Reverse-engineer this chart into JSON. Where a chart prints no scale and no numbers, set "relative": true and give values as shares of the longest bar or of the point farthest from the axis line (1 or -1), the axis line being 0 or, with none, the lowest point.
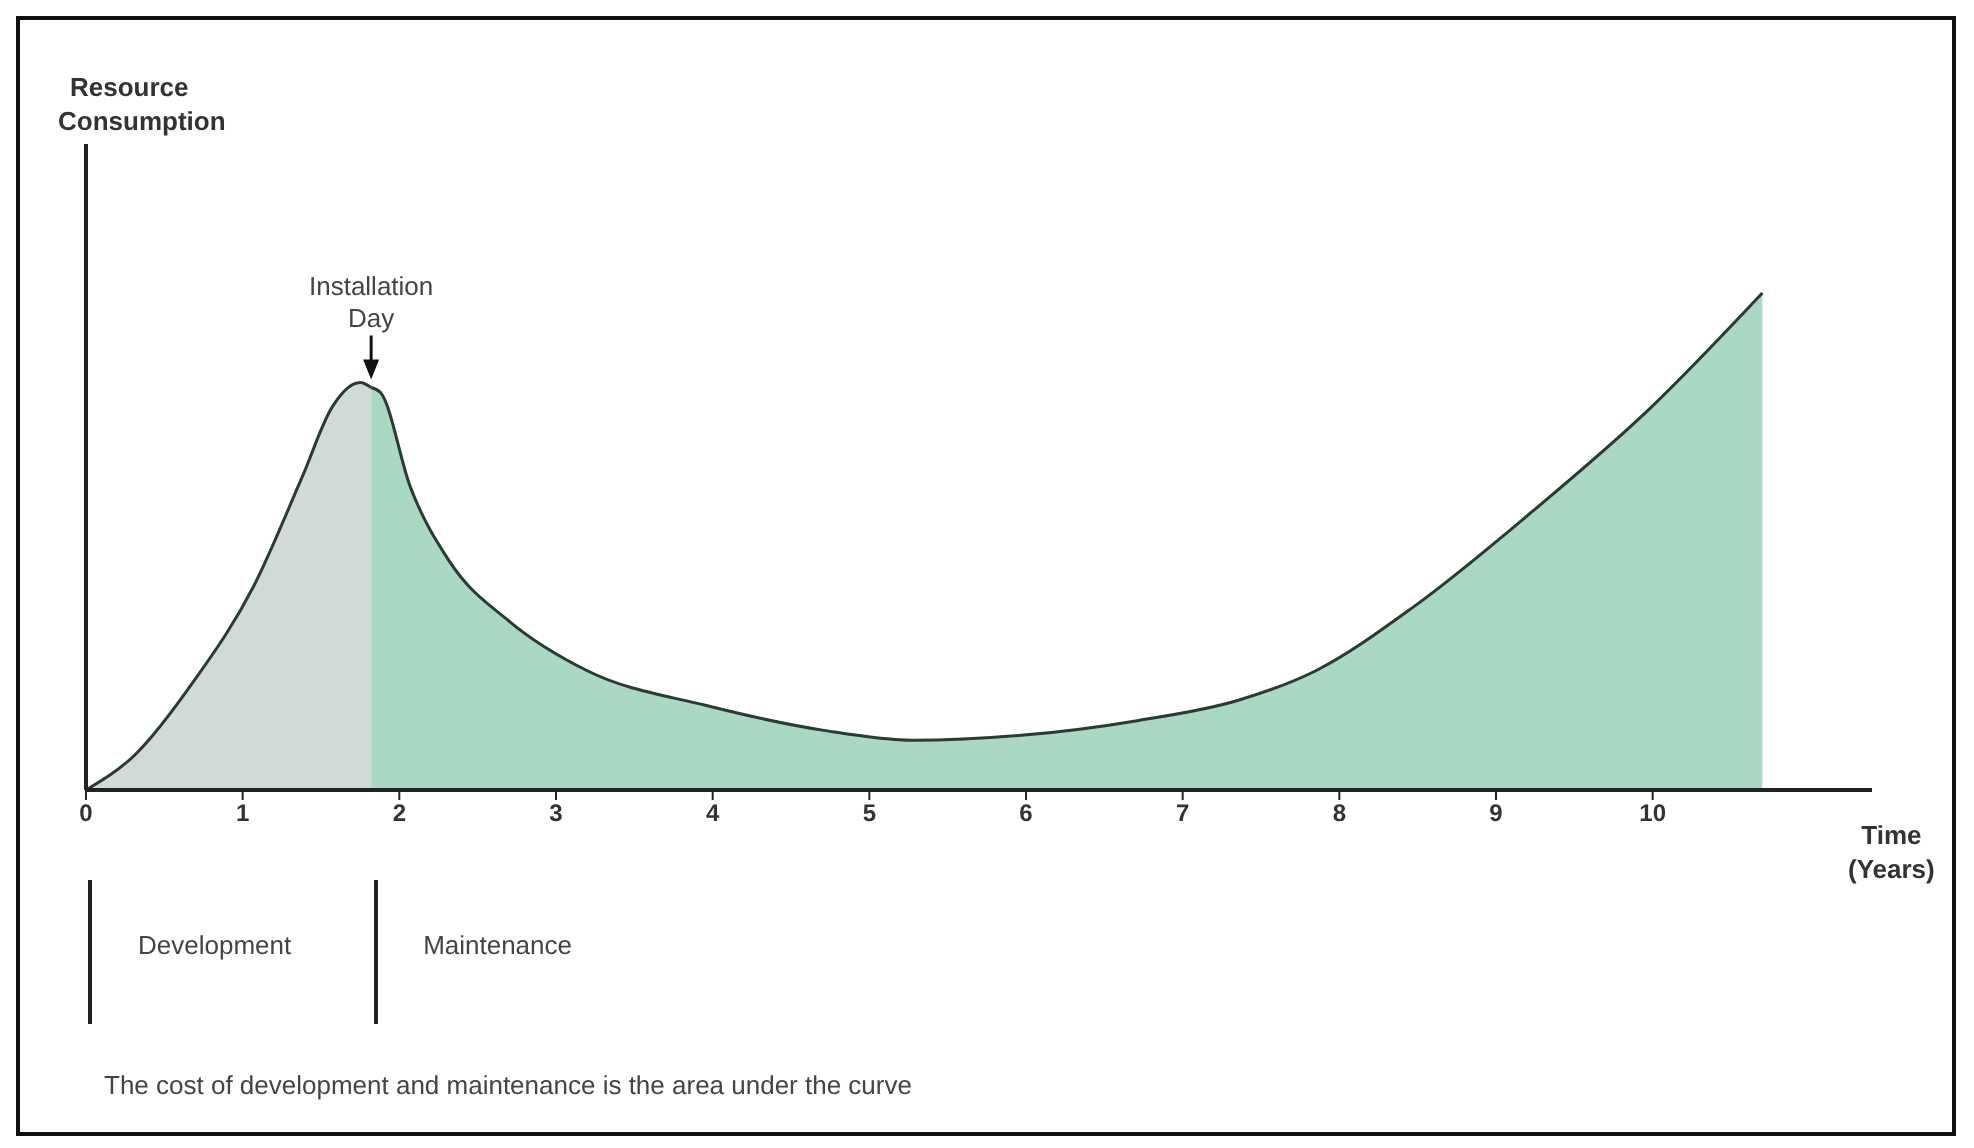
{
  "chart_data": {
    "type": "area",
    "relative": true,
    "xlabel": "Time (Years)",
    "xlim": [
      0,
      11.4
    ],
    "xticks": [
      0,
      1,
      2,
      3,
      4,
      5,
      6,
      7,
      8,
      9,
      10
    ],
    "series": [
      {
        "color": "#d0dbd6",
        "x": [
          0,
          0.31,
          0.69,
          1.07,
          1.38,
          1.57,
          1.75,
          1.82
        ],
        "values": [
          0,
          0.07,
          0.22,
          0.41,
          0.63,
          0.77,
          0.82,
          0.81
        ]
      },
      {
        "color": "#a9d8c3",
        "x": [
          1.82,
          1.88,
          2.07,
          2.32,
          2.7,
          3.2,
          3.96,
          4.71,
          5.28,
          5.97,
          6.72,
          7.35,
          7.85,
          8.48,
          9.23,
          9.99,
          10.7
        ],
        "values": [
          0.81,
          0.8,
          0.61,
          0.46,
          0.34,
          0.24,
          0.17,
          0.12,
          0.1,
          0.11,
          0.14,
          0.18,
          0.24,
          0.37,
          0.56,
          0.77,
          1.0
        ]
      }
    ],
    "annotations": [
      "Resource Consumption",
      {
        "text": "Installation Day",
        "x": 1.82,
        "y": 0.81
      },
      "Development",
      "Maintenance",
      "The cost of development and maintenance is the area under the curve"
    ]
  }
}
